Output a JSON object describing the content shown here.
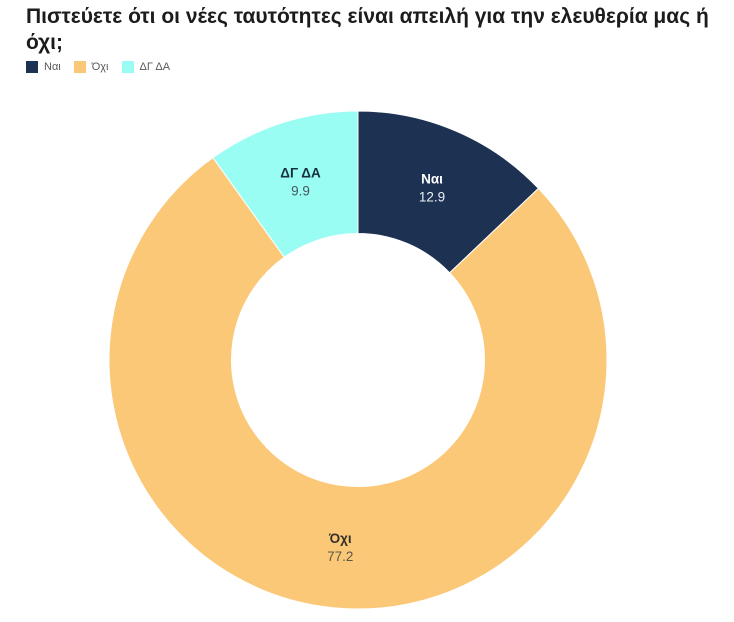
{
  "chart_data": {
    "type": "pie",
    "subtype": "donut",
    "title": "Πιστεύετε ότι οι νέες ταυτότητες είναι απειλή για την ελευθερία μας ή όχι;",
    "categories": [
      "Ναι",
      "Όχι",
      "ΔΓ ΔΑ"
    ],
    "values": [
      12.9,
      77.2,
      9.9
    ],
    "colors": [
      "#1d3253",
      "#fbc878",
      "#9afdf3"
    ],
    "label_name_colors": [
      "#ffffff",
      "#33302a",
      "#163043"
    ],
    "label_value_colors": [
      "#eef1f6",
      "#5d5747",
      "#46585f"
    ],
    "legend_text_color": "#595959",
    "title_color": "#1c1c1c",
    "start_angle_deg": 0,
    "direction": "clockwise",
    "inner_radius_ratio": 0.508,
    "legend_position": "top-left",
    "labels": "category name above value, one decimal, placed inside slices"
  }
}
